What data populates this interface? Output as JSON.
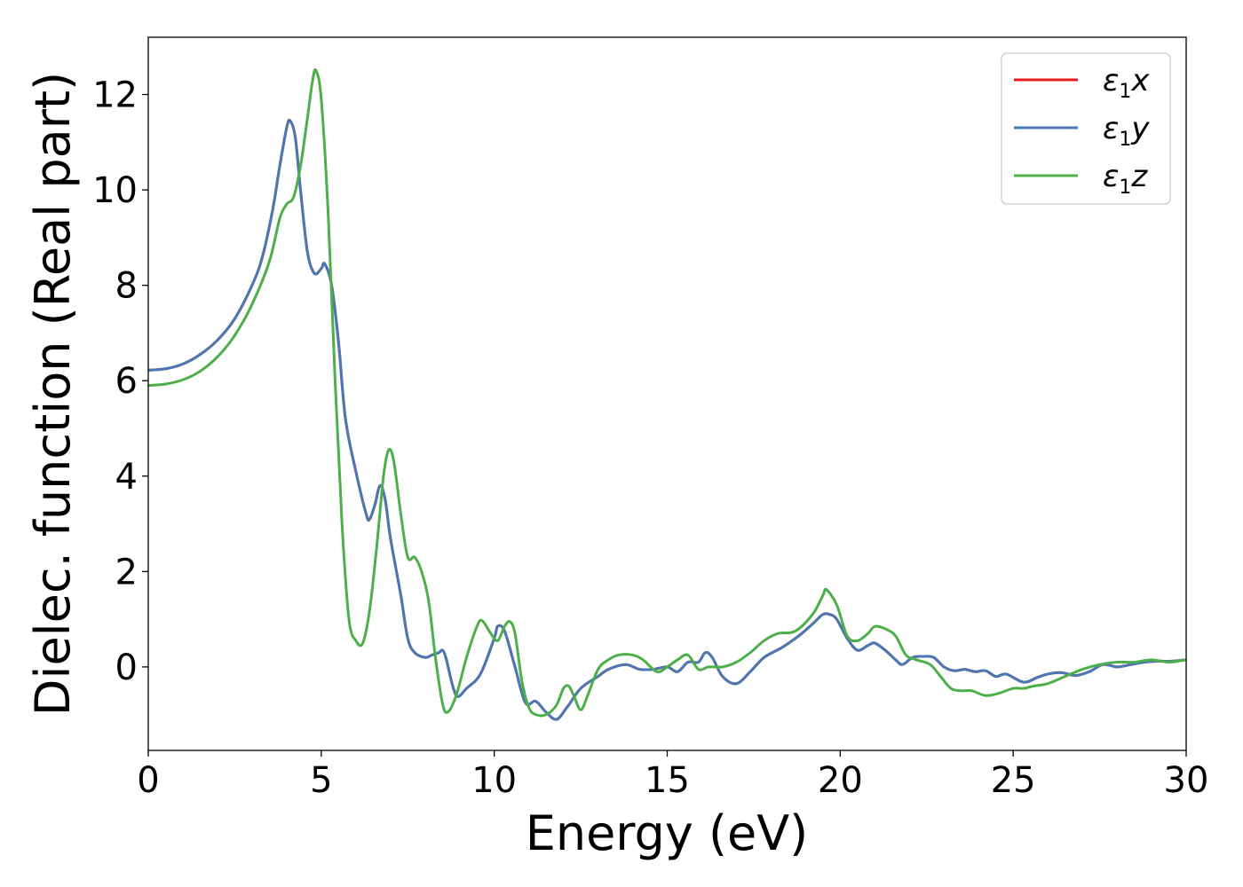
{
  "chart_data": {
    "type": "line",
    "xlabel": "Energy (eV)",
    "ylabel": "Dielec. function (Real part)",
    "xlim": [
      0,
      30
    ],
    "ylim": [
      -1.75,
      13.2
    ],
    "xticks": [
      0,
      5,
      10,
      15,
      20,
      25,
      30
    ],
    "yticks": [
      0,
      2,
      4,
      6,
      8,
      10,
      12
    ],
    "grid": false,
    "legend_position": "top-right",
    "series": [
      {
        "name": "ε1x",
        "legend_main": "ε",
        "legend_sub": "1",
        "legend_var": "x",
        "color": "#e41a1c",
        "points": [
          [
            0,
            6.22
          ],
          [
            0.5,
            6.25
          ],
          [
            1,
            6.35
          ],
          [
            1.5,
            6.55
          ],
          [
            2,
            6.85
          ],
          [
            2.5,
            7.3
          ],
          [
            3,
            8.0
          ],
          [
            3.3,
            8.6
          ],
          [
            3.6,
            9.6
          ],
          [
            3.8,
            10.5
          ],
          [
            4.0,
            11.3
          ],
          [
            4.1,
            11.45
          ],
          [
            4.25,
            11.1
          ],
          [
            4.4,
            10.0
          ],
          [
            4.6,
            8.7
          ],
          [
            4.8,
            8.25
          ],
          [
            5.0,
            8.35
          ],
          [
            5.1,
            8.45
          ],
          [
            5.3,
            8.0
          ],
          [
            5.5,
            6.8
          ],
          [
            5.7,
            5.2
          ],
          [
            6.0,
            4.1
          ],
          [
            6.3,
            3.2
          ],
          [
            6.4,
            3.1
          ],
          [
            6.55,
            3.4
          ],
          [
            6.7,
            3.8
          ],
          [
            6.85,
            3.5
          ],
          [
            7.0,
            2.7
          ],
          [
            7.3,
            1.5
          ],
          [
            7.5,
            0.6
          ],
          [
            7.7,
            0.3
          ],
          [
            8.0,
            0.2
          ],
          [
            8.2,
            0.25
          ],
          [
            8.4,
            0.3
          ],
          [
            8.5,
            0.35
          ],
          [
            8.6,
            0.2
          ],
          [
            8.8,
            -0.4
          ],
          [
            8.95,
            -0.62
          ],
          [
            9.2,
            -0.45
          ],
          [
            9.6,
            -0.15
          ],
          [
            10.0,
            0.6
          ],
          [
            10.1,
            0.85
          ],
          [
            10.3,
            0.75
          ],
          [
            10.6,
            0.0
          ],
          [
            10.9,
            -0.75
          ],
          [
            11.2,
            -0.72
          ],
          [
            11.5,
            -0.95
          ],
          [
            11.8,
            -1.1
          ],
          [
            12.1,
            -0.85
          ],
          [
            12.5,
            -0.45
          ],
          [
            13.0,
            -0.2
          ],
          [
            13.3,
            -0.05
          ],
          [
            13.8,
            0.05
          ],
          [
            14.2,
            -0.05
          ],
          [
            14.6,
            -0.05
          ],
          [
            15.0,
            0.0
          ],
          [
            15.3,
            -0.1
          ],
          [
            15.6,
            0.1
          ],
          [
            15.9,
            0.1
          ],
          [
            16.1,
            0.3
          ],
          [
            16.3,
            0.2
          ],
          [
            16.6,
            -0.2
          ],
          [
            17.0,
            -0.35
          ],
          [
            17.4,
            -0.1
          ],
          [
            17.8,
            0.2
          ],
          [
            18.3,
            0.4
          ],
          [
            18.8,
            0.65
          ],
          [
            19.2,
            0.9
          ],
          [
            19.5,
            1.1
          ],
          [
            19.7,
            1.1
          ],
          [
            19.9,
            1.0
          ],
          [
            20.2,
            0.6
          ],
          [
            20.5,
            0.35
          ],
          [
            20.8,
            0.45
          ],
          [
            21.0,
            0.5
          ],
          [
            21.3,
            0.35
          ],
          [
            21.6,
            0.15
          ],
          [
            21.8,
            0.05
          ],
          [
            22.1,
            0.2
          ],
          [
            22.4,
            0.22
          ],
          [
            22.7,
            0.2
          ],
          [
            23.0,
            0.0
          ],
          [
            23.3,
            -0.08
          ],
          [
            23.6,
            -0.05
          ],
          [
            23.9,
            -0.1
          ],
          [
            24.2,
            -0.08
          ],
          [
            24.5,
            -0.2
          ],
          [
            24.8,
            -0.15
          ],
          [
            25.3,
            -0.32
          ],
          [
            25.7,
            -0.22
          ],
          [
            26.0,
            -0.15
          ],
          [
            26.4,
            -0.12
          ],
          [
            26.8,
            -0.18
          ],
          [
            27.2,
            -0.1
          ],
          [
            27.6,
            0.05
          ],
          [
            28.0,
            0.0
          ],
          [
            28.4,
            0.05
          ],
          [
            28.8,
            0.1
          ],
          [
            29.2,
            0.12
          ],
          [
            29.6,
            0.12
          ],
          [
            30.0,
            0.15
          ]
        ]
      },
      {
        "name": "ε1y",
        "legend_main": "ε",
        "legend_sub": "1",
        "legend_var": "y",
        "color": "#4a78b3",
        "points": [
          [
            0,
            6.22
          ],
          [
            0.5,
            6.25
          ],
          [
            1,
            6.35
          ],
          [
            1.5,
            6.55
          ],
          [
            2,
            6.85
          ],
          [
            2.5,
            7.3
          ],
          [
            3,
            8.0
          ],
          [
            3.3,
            8.6
          ],
          [
            3.6,
            9.6
          ],
          [
            3.8,
            10.5
          ],
          [
            4.0,
            11.3
          ],
          [
            4.1,
            11.45
          ],
          [
            4.25,
            11.1
          ],
          [
            4.4,
            10.0
          ],
          [
            4.6,
            8.7
          ],
          [
            4.8,
            8.25
          ],
          [
            5.0,
            8.35
          ],
          [
            5.1,
            8.45
          ],
          [
            5.3,
            8.0
          ],
          [
            5.5,
            6.8
          ],
          [
            5.7,
            5.2
          ],
          [
            6.0,
            4.1
          ],
          [
            6.3,
            3.2
          ],
          [
            6.4,
            3.1
          ],
          [
            6.55,
            3.4
          ],
          [
            6.7,
            3.8
          ],
          [
            6.85,
            3.5
          ],
          [
            7.0,
            2.7
          ],
          [
            7.3,
            1.5
          ],
          [
            7.5,
            0.6
          ],
          [
            7.7,
            0.3
          ],
          [
            8.0,
            0.2
          ],
          [
            8.2,
            0.25
          ],
          [
            8.4,
            0.3
          ],
          [
            8.5,
            0.35
          ],
          [
            8.6,
            0.2
          ],
          [
            8.8,
            -0.4
          ],
          [
            8.95,
            -0.62
          ],
          [
            9.2,
            -0.45
          ],
          [
            9.6,
            -0.15
          ],
          [
            10.0,
            0.6
          ],
          [
            10.1,
            0.85
          ],
          [
            10.3,
            0.75
          ],
          [
            10.6,
            0.0
          ],
          [
            10.9,
            -0.75
          ],
          [
            11.2,
            -0.72
          ],
          [
            11.5,
            -0.95
          ],
          [
            11.8,
            -1.1
          ],
          [
            12.1,
            -0.85
          ],
          [
            12.5,
            -0.45
          ],
          [
            13.0,
            -0.2
          ],
          [
            13.3,
            -0.05
          ],
          [
            13.8,
            0.05
          ],
          [
            14.2,
            -0.05
          ],
          [
            14.6,
            -0.05
          ],
          [
            15.0,
            0.0
          ],
          [
            15.3,
            -0.1
          ],
          [
            15.6,
            0.1
          ],
          [
            15.9,
            0.1
          ],
          [
            16.1,
            0.3
          ],
          [
            16.3,
            0.2
          ],
          [
            16.6,
            -0.2
          ],
          [
            17.0,
            -0.35
          ],
          [
            17.4,
            -0.1
          ],
          [
            17.8,
            0.2
          ],
          [
            18.3,
            0.4
          ],
          [
            18.8,
            0.65
          ],
          [
            19.2,
            0.9
          ],
          [
            19.5,
            1.1
          ],
          [
            19.7,
            1.1
          ],
          [
            19.9,
            1.0
          ],
          [
            20.2,
            0.6
          ],
          [
            20.5,
            0.35
          ],
          [
            20.8,
            0.45
          ],
          [
            21.0,
            0.5
          ],
          [
            21.3,
            0.35
          ],
          [
            21.6,
            0.15
          ],
          [
            21.8,
            0.05
          ],
          [
            22.1,
            0.2
          ],
          [
            22.4,
            0.22
          ],
          [
            22.7,
            0.2
          ],
          [
            23.0,
            0.0
          ],
          [
            23.3,
            -0.08
          ],
          [
            23.6,
            -0.05
          ],
          [
            23.9,
            -0.1
          ],
          [
            24.2,
            -0.08
          ],
          [
            24.5,
            -0.2
          ],
          [
            24.8,
            -0.15
          ],
          [
            25.3,
            -0.32
          ],
          [
            25.7,
            -0.22
          ],
          [
            26.0,
            -0.15
          ],
          [
            26.4,
            -0.12
          ],
          [
            26.8,
            -0.18
          ],
          [
            27.2,
            -0.1
          ],
          [
            27.6,
            0.05
          ],
          [
            28.0,
            0.0
          ],
          [
            28.4,
            0.05
          ],
          [
            28.8,
            0.1
          ],
          [
            29.2,
            0.12
          ],
          [
            29.6,
            0.12
          ],
          [
            30.0,
            0.15
          ]
        ]
      },
      {
        "name": "ε1z",
        "legend_main": "ε",
        "legend_sub": "1",
        "legend_var": "z",
        "color": "#4daf4a",
        "points": [
          [
            0,
            5.9
          ],
          [
            0.5,
            5.93
          ],
          [
            1,
            6.02
          ],
          [
            1.5,
            6.2
          ],
          [
            2,
            6.5
          ],
          [
            2.5,
            6.95
          ],
          [
            3,
            7.6
          ],
          [
            3.5,
            8.5
          ],
          [
            3.8,
            9.4
          ],
          [
            4.0,
            9.7
          ],
          [
            4.2,
            9.85
          ],
          [
            4.4,
            10.5
          ],
          [
            4.6,
            11.5
          ],
          [
            4.75,
            12.3
          ],
          [
            4.85,
            12.5
          ],
          [
            5.0,
            11.9
          ],
          [
            5.2,
            9.5
          ],
          [
            5.4,
            6.0
          ],
          [
            5.6,
            3.0
          ],
          [
            5.8,
            1.0
          ],
          [
            6.0,
            0.55
          ],
          [
            6.2,
            0.5
          ],
          [
            6.4,
            1.2
          ],
          [
            6.6,
            2.5
          ],
          [
            6.8,
            4.0
          ],
          [
            6.95,
            4.55
          ],
          [
            7.1,
            4.3
          ],
          [
            7.3,
            3.2
          ],
          [
            7.5,
            2.3
          ],
          [
            7.7,
            2.3
          ],
          [
            7.9,
            2.0
          ],
          [
            8.1,
            1.4
          ],
          [
            8.3,
            0.2
          ],
          [
            8.5,
            -0.75
          ],
          [
            8.65,
            -0.95
          ],
          [
            8.9,
            -0.6
          ],
          [
            9.2,
            0.2
          ],
          [
            9.5,
            0.85
          ],
          [
            9.65,
            0.97
          ],
          [
            9.9,
            0.7
          ],
          [
            10.1,
            0.55
          ],
          [
            10.3,
            0.85
          ],
          [
            10.45,
            0.95
          ],
          [
            10.6,
            0.7
          ],
          [
            10.8,
            -0.3
          ],
          [
            11.0,
            -0.85
          ],
          [
            11.2,
            -1.0
          ],
          [
            11.5,
            -1.0
          ],
          [
            11.8,
            -0.8
          ],
          [
            12.0,
            -0.45
          ],
          [
            12.15,
            -0.4
          ],
          [
            12.3,
            -0.6
          ],
          [
            12.5,
            -0.9
          ],
          [
            12.7,
            -0.6
          ],
          [
            13.0,
            -0.05
          ],
          [
            13.3,
            0.15
          ],
          [
            13.6,
            0.25
          ],
          [
            14.0,
            0.25
          ],
          [
            14.3,
            0.15
          ],
          [
            14.7,
            -0.1
          ],
          [
            15.0,
            0.0
          ],
          [
            15.3,
            0.15
          ],
          [
            15.6,
            0.25
          ],
          [
            15.9,
            -0.05
          ],
          [
            16.2,
            0.0
          ],
          [
            16.6,
            0.0
          ],
          [
            17.0,
            0.1
          ],
          [
            17.4,
            0.3
          ],
          [
            17.8,
            0.55
          ],
          [
            18.2,
            0.7
          ],
          [
            18.7,
            0.75
          ],
          [
            19.2,
            1.1
          ],
          [
            19.5,
            1.5
          ],
          [
            19.6,
            1.62
          ],
          [
            19.9,
            1.3
          ],
          [
            20.2,
            0.65
          ],
          [
            20.5,
            0.55
          ],
          [
            20.8,
            0.7
          ],
          [
            21.0,
            0.85
          ],
          [
            21.3,
            0.8
          ],
          [
            21.6,
            0.65
          ],
          [
            21.9,
            0.25
          ],
          [
            22.2,
            0.15
          ],
          [
            22.6,
            0.05
          ],
          [
            22.9,
            -0.2
          ],
          [
            23.2,
            -0.45
          ],
          [
            23.5,
            -0.5
          ],
          [
            23.8,
            -0.5
          ],
          [
            24.2,
            -0.6
          ],
          [
            24.6,
            -0.55
          ],
          [
            25.0,
            -0.45
          ],
          [
            25.3,
            -0.45
          ],
          [
            25.6,
            -0.4
          ],
          [
            26.0,
            -0.35
          ],
          [
            26.5,
            -0.2
          ],
          [
            27.0,
            -0.05
          ],
          [
            27.5,
            0.05
          ],
          [
            28.0,
            0.1
          ],
          [
            28.5,
            0.1
          ],
          [
            29.0,
            0.15
          ],
          [
            29.5,
            0.1
          ],
          [
            30.0,
            0.15
          ]
        ]
      }
    ]
  }
}
